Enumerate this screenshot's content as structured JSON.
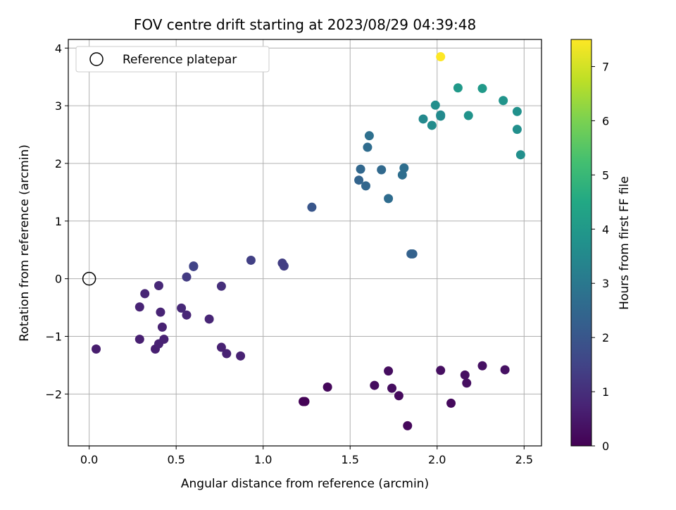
{
  "chart_data": {
    "type": "scatter",
    "title": "FOV centre drift starting at 2023/08/29 04:39:48",
    "xlabel": "Angular distance from reference (arcmin)",
    "ylabel": "Rotation from reference (arcmin)",
    "colorbar_label": "Hours from first FF file",
    "colormap": "viridis",
    "clim": [
      0,
      7.5
    ],
    "xlim": [
      -0.12,
      2.6
    ],
    "ylim": [
      -2.9,
      4.15
    ],
    "xticks": [
      "0.0",
      "0.5",
      "1.0",
      "1.5",
      "2.0",
      "2.5"
    ],
    "yticks": [
      "−2",
      "−1",
      "0",
      "1",
      "2",
      "3",
      "4"
    ],
    "colorbar_ticks": [
      "0",
      "1",
      "2",
      "3",
      "4",
      "5",
      "6",
      "7"
    ],
    "grid": true,
    "legend": {
      "location": "top-left",
      "entries": [
        "Reference platepar"
      ]
    },
    "reference_point": {
      "x": 0.0,
      "y": 0.0,
      "marker": "open-circle"
    },
    "points": [
      {
        "x": 1.23,
        "y": -2.13,
        "c": 0.05
      },
      {
        "x": 1.24,
        "y": -2.13,
        "c": 0.05
      },
      {
        "x": 1.37,
        "y": -1.88,
        "c": 0.15
      },
      {
        "x": 1.64,
        "y": -1.85,
        "c": 0.25
      },
      {
        "x": 1.72,
        "y": -1.6,
        "c": 0.25
      },
      {
        "x": 1.74,
        "y": -1.9,
        "c": 0.25
      },
      {
        "x": 1.78,
        "y": -2.03,
        "c": 0.2
      },
      {
        "x": 1.83,
        "y": -2.55,
        "c": 0.15
      },
      {
        "x": 2.02,
        "y": -1.59,
        "c": 0.3
      },
      {
        "x": 2.08,
        "y": -2.16,
        "c": 0.2
      },
      {
        "x": 2.16,
        "y": -1.67,
        "c": 0.3
      },
      {
        "x": 2.17,
        "y": -1.81,
        "c": 0.3
      },
      {
        "x": 2.26,
        "y": -1.51,
        "c": 0.35
      },
      {
        "x": 2.39,
        "y": -1.58,
        "c": 0.35
      },
      {
        "x": 0.04,
        "y": -1.22,
        "c": 0.6
      },
      {
        "x": 0.29,
        "y": -1.05,
        "c": 0.65
      },
      {
        "x": 0.38,
        "y": -1.22,
        "c": 0.65
      },
      {
        "x": 0.4,
        "y": -1.13,
        "c": 0.7
      },
      {
        "x": 0.43,
        "y": -1.05,
        "c": 0.7
      },
      {
        "x": 0.42,
        "y": -0.84,
        "c": 0.7
      },
      {
        "x": 0.41,
        "y": -0.58,
        "c": 0.75
      },
      {
        "x": 0.29,
        "y": -0.49,
        "c": 0.75
      },
      {
        "x": 0.32,
        "y": -0.26,
        "c": 0.8
      },
      {
        "x": 0.4,
        "y": -0.12,
        "c": 0.85
      },
      {
        "x": 0.53,
        "y": -0.51,
        "c": 0.85
      },
      {
        "x": 0.56,
        "y": -0.63,
        "c": 0.8
      },
      {
        "x": 0.69,
        "y": -0.7,
        "c": 0.8
      },
      {
        "x": 0.76,
        "y": -1.19,
        "c": 0.7
      },
      {
        "x": 0.79,
        "y": -1.3,
        "c": 0.7
      },
      {
        "x": 0.87,
        "y": -1.34,
        "c": 0.7
      },
      {
        "x": 0.76,
        "y": -0.13,
        "c": 1.0
      },
      {
        "x": 0.56,
        "y": 0.03,
        "c": 1.3
      },
      {
        "x": 0.6,
        "y": 0.21,
        "c": 1.5
      },
      {
        "x": 0.6,
        "y": 0.22,
        "c": 1.5
      },
      {
        "x": 0.93,
        "y": 0.32,
        "c": 1.4
      },
      {
        "x": 1.11,
        "y": 0.27,
        "c": 1.35
      },
      {
        "x": 1.12,
        "y": 0.22,
        "c": 1.35
      },
      {
        "x": 1.28,
        "y": 1.24,
        "c": 2.0
      },
      {
        "x": 1.55,
        "y": 1.71,
        "c": 2.4
      },
      {
        "x": 1.56,
        "y": 1.9,
        "c": 2.5
      },
      {
        "x": 1.59,
        "y": 1.61,
        "c": 2.45
      },
      {
        "x": 1.6,
        "y": 2.28,
        "c": 2.65
      },
      {
        "x": 1.61,
        "y": 2.48,
        "c": 2.75
      },
      {
        "x": 1.68,
        "y": 1.89,
        "c": 2.55
      },
      {
        "x": 1.72,
        "y": 1.39,
        "c": 2.65
      },
      {
        "x": 1.8,
        "y": 1.8,
        "c": 2.7
      },
      {
        "x": 1.81,
        "y": 1.92,
        "c": 2.7
      },
      {
        "x": 1.85,
        "y": 0.43,
        "c": 2.35
      },
      {
        "x": 1.86,
        "y": 0.43,
        "c": 2.35
      },
      {
        "x": 1.92,
        "y": 2.77,
        "c": 3.5
      },
      {
        "x": 1.97,
        "y": 2.66,
        "c": 3.6
      },
      {
        "x": 1.99,
        "y": 3.01,
        "c": 3.7
      },
      {
        "x": 2.02,
        "y": 2.82,
        "c": 3.55
      },
      {
        "x": 2.02,
        "y": 2.84,
        "c": 3.55
      },
      {
        "x": 2.12,
        "y": 3.31,
        "c": 4.0
      },
      {
        "x": 2.18,
        "y": 2.83,
        "c": 3.8
      },
      {
        "x": 2.26,
        "y": 3.3,
        "c": 4.0
      },
      {
        "x": 2.38,
        "y": 3.09,
        "c": 3.85
      },
      {
        "x": 2.46,
        "y": 2.9,
        "c": 3.75
      },
      {
        "x": 2.46,
        "y": 2.59,
        "c": 3.7
      },
      {
        "x": 2.48,
        "y": 2.15,
        "c": 3.7
      },
      {
        "x": 2.02,
        "y": 3.85,
        "c": 7.5
      }
    ]
  }
}
